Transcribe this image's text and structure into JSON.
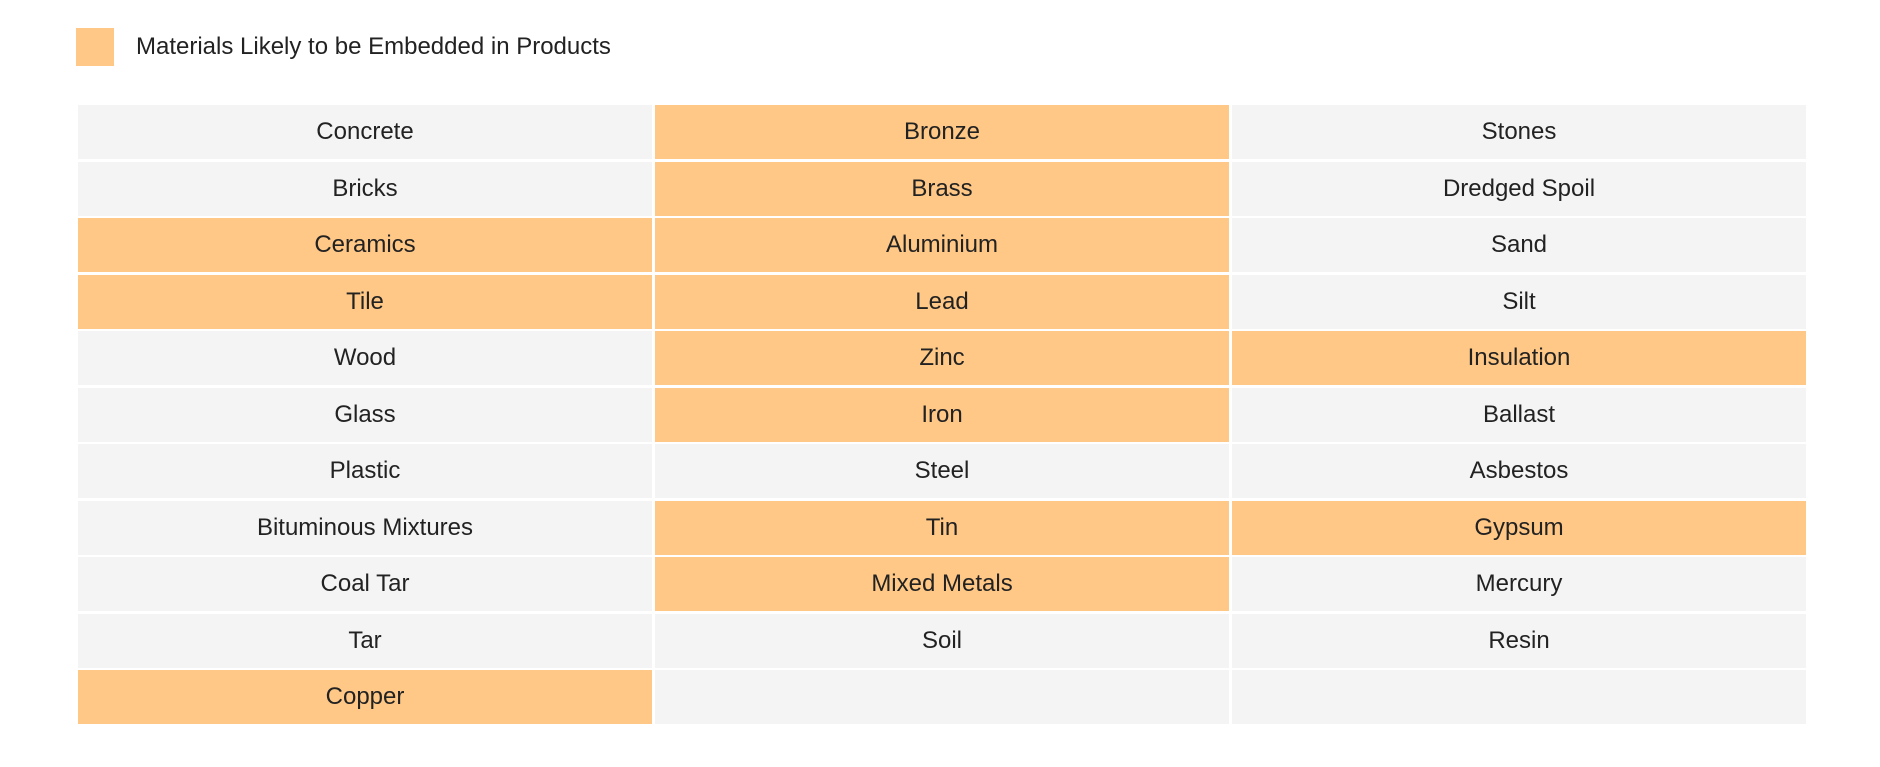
{
  "legend": {
    "label": "Materials Likely to be Embedded in Products",
    "color": "#ffc886"
  },
  "colors": {
    "embedded": "#ffc886",
    "default": "#f4f4f4"
  },
  "table": {
    "columns": 3,
    "rows": [
      [
        {
          "text": "Concrete",
          "embedded": false
        },
        {
          "text": "Bronze",
          "embedded": true
        },
        {
          "text": "Stones",
          "embedded": false
        }
      ],
      [
        {
          "text": "Bricks",
          "embedded": false
        },
        {
          "text": "Brass",
          "embedded": true
        },
        {
          "text": "Dredged Spoil",
          "embedded": false
        }
      ],
      [
        {
          "text": "Ceramics",
          "embedded": true
        },
        {
          "text": "Aluminium",
          "embedded": true
        },
        {
          "text": "Sand",
          "embedded": false
        }
      ],
      [
        {
          "text": "Tile",
          "embedded": true
        },
        {
          "text": "Lead",
          "embedded": true
        },
        {
          "text": "Silt",
          "embedded": false
        }
      ],
      [
        {
          "text": "Wood",
          "embedded": false
        },
        {
          "text": "Zinc",
          "embedded": true
        },
        {
          "text": "Insulation",
          "embedded": true
        }
      ],
      [
        {
          "text": "Glass",
          "embedded": false
        },
        {
          "text": "Iron",
          "embedded": true
        },
        {
          "text": "Ballast",
          "embedded": false
        }
      ],
      [
        {
          "text": "Plastic",
          "embedded": false
        },
        {
          "text": "Steel",
          "embedded": false
        },
        {
          "text": "Asbestos",
          "embedded": false
        }
      ],
      [
        {
          "text": "Bituminous Mixtures",
          "embedded": false
        },
        {
          "text": "Tin",
          "embedded": true
        },
        {
          "text": "Gypsum",
          "embedded": true
        }
      ],
      [
        {
          "text": "Coal Tar",
          "embedded": false
        },
        {
          "text": "Mixed Metals",
          "embedded": true
        },
        {
          "text": "Mercury",
          "embedded": false
        }
      ],
      [
        {
          "text": "Tar",
          "embedded": false
        },
        {
          "text": "Soil",
          "embedded": false
        },
        {
          "text": "Resin",
          "embedded": false
        }
      ],
      [
        {
          "text": "Copper",
          "embedded": true
        },
        {
          "text": "",
          "embedded": false
        },
        {
          "text": "",
          "embedded": false
        }
      ]
    ]
  }
}
